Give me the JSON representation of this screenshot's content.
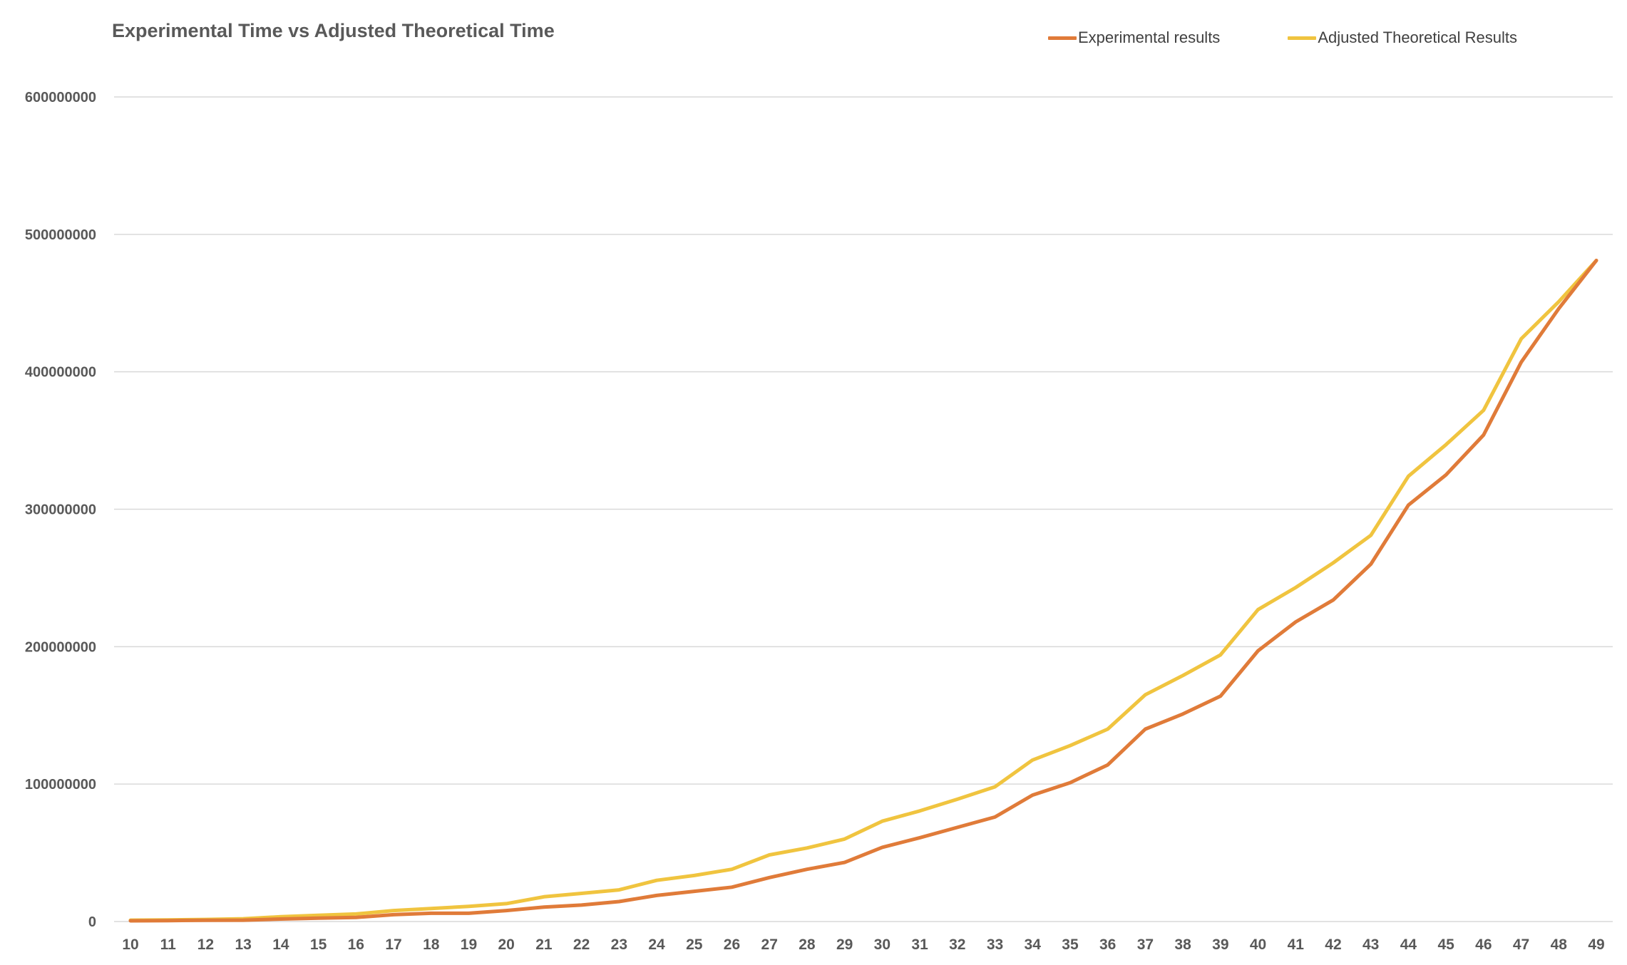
{
  "colors": {
    "experimental": "#E07B39",
    "theoretical": "#F0C43F",
    "grid": "#D9D9D9",
    "axis_text": "#595959"
  },
  "chart_data": {
    "type": "line",
    "title": "Experimental Time vs Adjusted Theoretical Time",
    "xlabel": "",
    "ylabel": "",
    "categories": [
      "10",
      "11",
      "12",
      "13",
      "14",
      "15",
      "16",
      "17",
      "18",
      "19",
      "20",
      "21",
      "22",
      "23",
      "24",
      "25",
      "26",
      "27",
      "28",
      "29",
      "30",
      "31",
      "32",
      "33",
      "34",
      "35",
      "36",
      "37",
      "38",
      "39",
      "40",
      "41",
      "42",
      "43",
      "44",
      "45",
      "46",
      "47",
      "48",
      "49"
    ],
    "ylim": [
      0,
      600000000
    ],
    "yticks": [
      0,
      100000000,
      200000000,
      300000000,
      400000000,
      500000000,
      600000000
    ],
    "ytick_labels": [
      "0",
      "100000000",
      "200000000",
      "300000000",
      "400000000",
      "500000000",
      "600000000"
    ],
    "grid": true,
    "legend_position": "top-right",
    "series": [
      {
        "name": "Experimental results",
        "color_key": "experimental",
        "values": [
          500000,
          700000,
          900000,
          1000000,
          1800000,
          2500000,
          3000000,
          5000000,
          6000000,
          6000000,
          8000000,
          10500000,
          12000000,
          14500000,
          19000000,
          22000000,
          25000000,
          32000000,
          38000000,
          43000000,
          54000000,
          61000000,
          68500000,
          76000000,
          92000000,
          101000000,
          114000000,
          140000000,
          151000000,
          164000000,
          197000000,
          218000000,
          234000000,
          260000000,
          303000000,
          325000000,
          354000000,
          407000000,
          446000000,
          481000000
        ]
      },
      {
        "name": "Adjusted Theoretical Results",
        "color_key": "theoretical",
        "values": [
          1000000,
          1200000,
          1500000,
          2000000,
          3500000,
          4500000,
          5500000,
          8000000,
          9500000,
          11000000,
          13000000,
          18000000,
          20500000,
          23000000,
          30000000,
          33500000,
          38000000,
          48500000,
          53500000,
          60000000,
          73000000,
          80500000,
          89000000,
          98000000,
          117500000,
          128000000,
          140000000,
          165000000,
          179000000,
          194000000,
          227000000,
          243000000,
          261000000,
          281000000,
          324000000,
          347000000,
          372000000,
          424000000,
          451000000,
          481000000
        ]
      }
    ]
  }
}
